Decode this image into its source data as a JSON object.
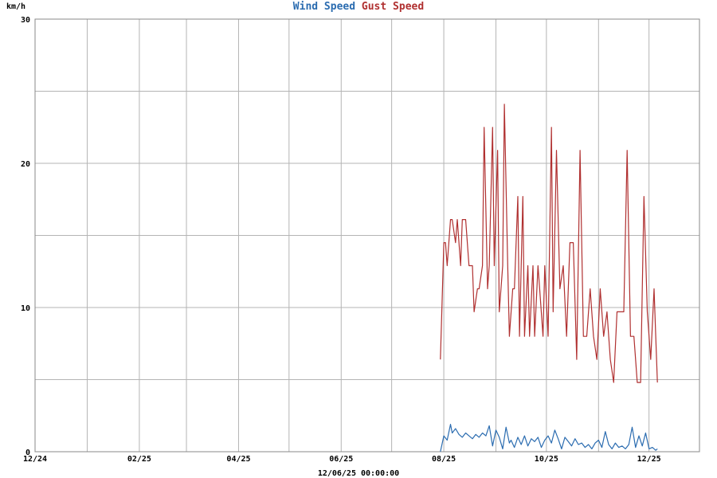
{
  "chart_data": {
    "type": "line",
    "ylabel": "km/h",
    "ylim": [
      0,
      30
    ],
    "yticks": [
      "0",
      "10",
      "20",
      "30"
    ],
    "x_tick_labels": [
      "12/24",
      "02/25",
      "04/25",
      "06/25",
      "08/25",
      "10/25",
      "12/25"
    ],
    "xlim": [
      "2024-12-01",
      "2025-12-31"
    ],
    "timestamp": "12/06/25 00:00:00",
    "grid": true,
    "series": [
      {
        "name": "Wind Speed",
        "color": "#2b6cb0",
        "x": [
          "2025-07-30",
          "2025-08-01",
          "2025-08-03",
          "2025-08-05",
          "2025-08-06",
          "2025-08-08",
          "2025-08-10",
          "2025-08-12",
          "2025-08-14",
          "2025-08-16",
          "2025-08-18",
          "2025-08-20",
          "2025-08-22",
          "2025-08-24",
          "2025-08-26",
          "2025-08-28",
          "2025-08-30",
          "2025-09-01",
          "2025-09-03",
          "2025-09-05",
          "2025-09-07",
          "2025-09-09",
          "2025-09-10",
          "2025-09-12",
          "2025-09-14",
          "2025-09-16",
          "2025-09-18",
          "2025-09-20",
          "2025-09-22",
          "2025-09-24",
          "2025-09-26",
          "2025-09-28",
          "2025-09-30",
          "2025-10-02",
          "2025-10-04",
          "2025-10-06",
          "2025-10-08",
          "2025-10-10",
          "2025-10-12",
          "2025-10-14",
          "2025-10-16",
          "2025-10-18",
          "2025-10-20",
          "2025-10-22",
          "2025-10-24",
          "2025-10-26",
          "2025-10-28",
          "2025-10-30",
          "2025-11-01",
          "2025-11-03",
          "2025-11-05",
          "2025-11-07",
          "2025-11-09",
          "2025-11-11",
          "2025-11-13",
          "2025-11-15",
          "2025-11-17",
          "2025-11-19",
          "2025-11-21",
          "2025-11-23",
          "2025-11-25",
          "2025-11-27",
          "2025-11-29",
          "2025-12-01",
          "2025-12-03",
          "2025-12-05",
          "2025-12-06"
        ],
        "values": [
          0.0,
          1.1,
          0.8,
          1.9,
          1.3,
          1.6,
          1.2,
          1.0,
          1.3,
          1.1,
          0.9,
          1.2,
          1.0,
          1.3,
          1.1,
          1.8,
          0.4,
          1.5,
          1.0,
          0.2,
          1.7,
          0.6,
          0.8,
          0.3,
          1.0,
          0.5,
          1.1,
          0.4,
          0.9,
          0.7,
          1.0,
          0.3,
          0.8,
          1.1,
          0.6,
          1.5,
          0.9,
          0.2,
          1.0,
          0.7,
          0.4,
          0.9,
          0.5,
          0.6,
          0.3,
          0.5,
          0.2,
          0.6,
          0.8,
          0.3,
          1.4,
          0.5,
          0.2,
          0.6,
          0.3,
          0.4,
          0.2,
          0.5,
          1.7,
          0.3,
          1.1,
          0.4,
          1.3,
          0.2,
          0.3,
          0.1,
          0.2
        ]
      },
      {
        "name": "Gust Speed",
        "color": "#b03030",
        "x": [
          "2025-07-30",
          "2025-08-01",
          "2025-08-02",
          "2025-08-03",
          "2025-08-05",
          "2025-08-06",
          "2025-08-08",
          "2025-08-09",
          "2025-08-11",
          "2025-08-12",
          "2025-08-14",
          "2025-08-16",
          "2025-08-18",
          "2025-08-19",
          "2025-08-21",
          "2025-08-22",
          "2025-08-24",
          "2025-08-25",
          "2025-08-27",
          "2025-08-28",
          "2025-08-30",
          "2025-08-31",
          "2025-09-02",
          "2025-09-03",
          "2025-09-05",
          "2025-09-06",
          "2025-09-08",
          "2025-09-09",
          "2025-09-11",
          "2025-09-12",
          "2025-09-14",
          "2025-09-15",
          "2025-09-17",
          "2025-09-18",
          "2025-09-20",
          "2025-09-21",
          "2025-09-23",
          "2025-09-24",
          "2025-09-26",
          "2025-09-27",
          "2025-09-29",
          "2025-09-30",
          "2025-10-02",
          "2025-10-04",
          "2025-10-05",
          "2025-10-07",
          "2025-10-09",
          "2025-10-11",
          "2025-10-13",
          "2025-10-15",
          "2025-10-17",
          "2025-10-19",
          "2025-10-21",
          "2025-10-23",
          "2025-10-25",
          "2025-10-27",
          "2025-10-29",
          "2025-10-31",
          "2025-11-02",
          "2025-11-04",
          "2025-11-06",
          "2025-11-08",
          "2025-11-10",
          "2025-11-12",
          "2025-11-14",
          "2025-11-16",
          "2025-11-18",
          "2025-11-20",
          "2025-11-22",
          "2025-11-24",
          "2025-11-26",
          "2025-11-28",
          "2025-11-30",
          "2025-12-02",
          "2025-12-04",
          "2025-12-05",
          "2025-12-06"
        ],
        "values": [
          6.4,
          14.5,
          14.5,
          12.9,
          16.1,
          16.1,
          14.5,
          16.1,
          12.9,
          16.1,
          16.1,
          12.9,
          12.9,
          9.7,
          11.3,
          11.3,
          12.9,
          22.5,
          11.3,
          12.9,
          22.5,
          12.9,
          20.9,
          9.7,
          12.9,
          24.1,
          12.9,
          8.0,
          11.3,
          11.3,
          17.7,
          8.0,
          17.7,
          8.0,
          12.9,
          8.0,
          12.9,
          8.0,
          12.9,
          11.3,
          8.0,
          12.9,
          8.0,
          22.5,
          9.7,
          20.9,
          11.3,
          12.9,
          8.0,
          14.5,
          14.5,
          6.4,
          20.9,
          8.0,
          8.0,
          11.3,
          8.0,
          6.4,
          11.3,
          8.0,
          9.7,
          6.4,
          4.8,
          9.7,
          9.7,
          9.7,
          20.9,
          8.0,
          8.0,
          4.8,
          4.8,
          17.7,
          9.7,
          6.4,
          11.3,
          8.0,
          4.8
        ]
      }
    ]
  }
}
